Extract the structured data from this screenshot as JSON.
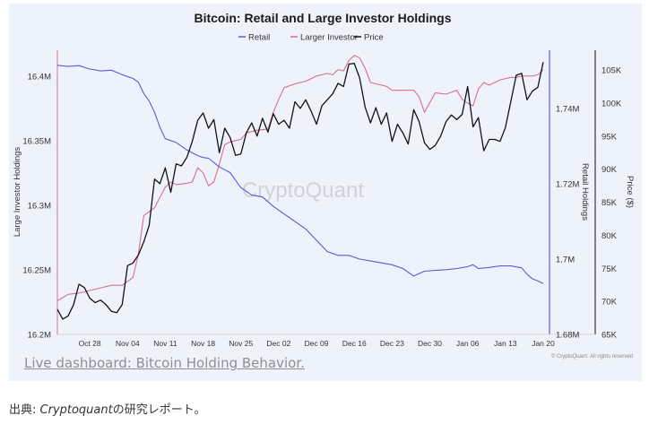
{
  "chart_data": {
    "type": "line",
    "title": "Bitcoin: Retail and Large Investor Holdings",
    "watermark": "CryptoQuant",
    "source_note": "© CryptoQuant. All rights reserved",
    "legend": {
      "placement": "top-center",
      "items": [
        {
          "name": "Retail",
          "color": "#5b5bd6"
        },
        {
          "name": "Larger Investor",
          "color": "#d9708a"
        },
        {
          "name": "Price",
          "color": "#111111"
        }
      ]
    },
    "x_ticks": [
      "Oct 28",
      "Nov 04",
      "Nov 11",
      "Nov 18",
      "Nov 25",
      "Dec 02",
      "Dec 09",
      "Dec 16",
      "Dec 23",
      "Dec 30",
      "Jan 06",
      "Jan 13",
      "Jan 20"
    ],
    "x_tick_days": [
      6,
      13,
      20,
      27,
      34,
      41,
      48,
      55,
      62,
      69,
      76,
      83,
      90
    ],
    "x_range_days": [
      0,
      91
    ],
    "axes": {
      "left": {
        "label": "Large Investor Holdings",
        "ticks": [
          "16.4M",
          "16.35M",
          "16.3M",
          "16.25M",
          "16.2M"
        ],
        "tick_values": [
          16.4,
          16.35,
          16.3,
          16.25,
          16.2
        ],
        "range": [
          16.2,
          16.42
        ]
      },
      "right1": {
        "label": "Retail Holdings",
        "ticks": [
          "1.74M",
          "1.72M",
          "1.7M",
          "1.68M"
        ],
        "tick_values": [
          1.74,
          1.72,
          1.7,
          1.68
        ],
        "range": [
          1.68,
          1.7555
        ]
      },
      "right2": {
        "label": "Price ($)",
        "ticks": [
          "105K",
          "100K",
          "95K",
          "90K",
          "85K",
          "80K",
          "75K",
          "70K",
          "65K"
        ],
        "tick_values": [
          105,
          100,
          95,
          90,
          85,
          80,
          75,
          70,
          65
        ],
        "range": [
          65,
          108
        ]
      }
    },
    "series": [
      {
        "name": "Larger Investor",
        "axis": "left",
        "color": "#d9708a",
        "points": [
          [
            0,
            16.226
          ],
          [
            2,
            16.231
          ],
          [
            4,
            16.232
          ],
          [
            6,
            16.234
          ],
          [
            8,
            16.236
          ],
          [
            10,
            16.238
          ],
          [
            12,
            16.238
          ],
          [
            14,
            16.244
          ],
          [
            15,
            16.262
          ],
          [
            16,
            16.292
          ],
          [
            18,
            16.298
          ],
          [
            20,
            16.314
          ],
          [
            21,
            16.318
          ],
          [
            22,
            16.316
          ],
          [
            24,
            16.317
          ],
          [
            25,
            16.318
          ],
          [
            26,
            16.329
          ],
          [
            27,
            16.325
          ],
          [
            28,
            16.315
          ],
          [
            29,
            16.318
          ],
          [
            30,
            16.332
          ],
          [
            31,
            16.347
          ],
          [
            32,
            16.349
          ],
          [
            34,
            16.351
          ],
          [
            35,
            16.356
          ],
          [
            37,
            16.358
          ],
          [
            39,
            16.359
          ],
          [
            40,
            16.372
          ],
          [
            41,
            16.382
          ],
          [
            42,
            16.391
          ],
          [
            44,
            16.394
          ],
          [
            46,
            16.396
          ],
          [
            48,
            16.4
          ],
          [
            50,
            16.402
          ],
          [
            51,
            16.401
          ],
          [
            52,
            16.405
          ],
          [
            53,
            16.404
          ],
          [
            54,
            16.412
          ],
          [
            55,
            16.416
          ],
          [
            56,
            16.414
          ],
          [
            57,
            16.406
          ],
          [
            58,
            16.395
          ],
          [
            59,
            16.394
          ],
          [
            60,
            16.393
          ],
          [
            61,
            16.392
          ],
          [
            62,
            16.389
          ],
          [
            64,
            16.389
          ],
          [
            66,
            16.389
          ],
          [
            67,
            16.384
          ],
          [
            68,
            16.372
          ],
          [
            70,
            16.387
          ],
          [
            72,
            16.386
          ],
          [
            74,
            16.389
          ],
          [
            75,
            16.382
          ],
          [
            76,
            16.379
          ],
          [
            77,
            16.377
          ],
          [
            78,
            16.39
          ],
          [
            79,
            16.395
          ],
          [
            80,
            16.393
          ],
          [
            81,
            16.395
          ],
          [
            82,
            16.397
          ],
          [
            84,
            16.399
          ],
          [
            85,
            16.399
          ],
          [
            86,
            16.4
          ],
          [
            88,
            16.4
          ],
          [
            89,
            16.401
          ],
          [
            90,
            16.405
          ]
        ]
      },
      {
        "name": "Retail",
        "axis": "right1",
        "color": "#5b5bd6",
        "points": [
          [
            0,
            1.7515
          ],
          [
            2,
            1.7512
          ],
          [
            4,
            1.7514
          ],
          [
            6,
            1.7505
          ],
          [
            8,
            1.75
          ],
          [
            10,
            1.7502
          ],
          [
            12,
            1.749
          ],
          [
            14,
            1.748
          ],
          [
            15,
            1.747
          ],
          [
            16,
            1.744
          ],
          [
            17,
            1.742
          ],
          [
            18,
            1.739
          ],
          [
            19,
            1.735
          ],
          [
            20,
            1.732
          ],
          [
            22,
            1.731
          ],
          [
            24,
            1.729
          ],
          [
            26,
            1.7275
          ],
          [
            27,
            1.727
          ],
          [
            28,
            1.7268
          ],
          [
            30,
            1.7245
          ],
          [
            32,
            1.723
          ],
          [
            34,
            1.719
          ],
          [
            36,
            1.717
          ],
          [
            38,
            1.7165
          ],
          [
            40,
            1.714
          ],
          [
            42,
            1.712
          ],
          [
            44,
            1.71
          ],
          [
            46,
            1.708
          ],
          [
            48,
            1.705
          ],
          [
            50,
            1.702
          ],
          [
            52,
            1.701
          ],
          [
            54,
            1.701
          ],
          [
            56,
            1.7
          ],
          [
            58,
            1.6995
          ],
          [
            60,
            1.699
          ],
          [
            62,
            1.6985
          ],
          [
            64,
            1.6975
          ],
          [
            66,
            1.6955
          ],
          [
            68,
            1.6968
          ],
          [
            70,
            1.697
          ],
          [
            72,
            1.6972
          ],
          [
            74,
            1.6975
          ],
          [
            76,
            1.698
          ],
          [
            77,
            1.6985
          ],
          [
            78,
            1.6975
          ],
          [
            80,
            1.6978
          ],
          [
            82,
            1.6982
          ],
          [
            84,
            1.6982
          ],
          [
            86,
            1.6977
          ],
          [
            87,
            1.696
          ],
          [
            88,
            1.6948
          ],
          [
            89,
            1.6942
          ],
          [
            90,
            1.6935
          ]
        ]
      },
      {
        "name": "Price",
        "axis": "right2",
        "color": "#111111",
        "points": [
          [
            0,
            68.8
          ],
          [
            1,
            67.3
          ],
          [
            2,
            67.8
          ],
          [
            3,
            69.5
          ],
          [
            4,
            72.6
          ],
          [
            5,
            72.1
          ],
          [
            6,
            70.5
          ],
          [
            7,
            69.8
          ],
          [
            8,
            70.2
          ],
          [
            9,
            69.5
          ],
          [
            10,
            68.5
          ],
          [
            11,
            68.3
          ],
          [
            12,
            69.5
          ],
          [
            13,
            75.4
          ],
          [
            14,
            75.8
          ],
          [
            15,
            77.0
          ],
          [
            16,
            79.0
          ],
          [
            17,
            81.5
          ],
          [
            18,
            88.5
          ],
          [
            19,
            87.8
          ],
          [
            20,
            90.2
          ],
          [
            21,
            86.5
          ],
          [
            22,
            90.8
          ],
          [
            23,
            90.5
          ],
          [
            24,
            91.8
          ],
          [
            25,
            94.2
          ],
          [
            26,
            97.4
          ],
          [
            27,
            98.5
          ],
          [
            28,
            96.2
          ],
          [
            29,
            97.5
          ],
          [
            30,
            92.5
          ],
          [
            31,
            96.2
          ],
          [
            32,
            94.8
          ],
          [
            33,
            92.1
          ],
          [
            34,
            92.3
          ],
          [
            35,
            95.5
          ],
          [
            36,
            97.0
          ],
          [
            37,
            95.0
          ],
          [
            38,
            97.7
          ],
          [
            39,
            95.6
          ],
          [
            40,
            98.4
          ],
          [
            41,
            96.8
          ],
          [
            42,
            97.4
          ],
          [
            43,
            96.2
          ],
          [
            44,
            100.2
          ],
          [
            45,
            99.2
          ],
          [
            46,
            100.5
          ],
          [
            47,
            98.8
          ],
          [
            48,
            96.8
          ],
          [
            49,
            99.6
          ],
          [
            50,
            100.5
          ],
          [
            51,
            101.4
          ],
          [
            52,
            103.0
          ],
          [
            53,
            102.5
          ],
          [
            54,
            105.9
          ],
          [
            55,
            106.0
          ],
          [
            56,
            103.8
          ],
          [
            57,
            99.4
          ],
          [
            58,
            97.0
          ],
          [
            59,
            99.3
          ],
          [
            60,
            96.8
          ],
          [
            61,
            98.5
          ],
          [
            62,
            94.2
          ],
          [
            63,
            96.8
          ],
          [
            64,
            95.5
          ],
          [
            65,
            93.8
          ],
          [
            66,
            99.0
          ],
          [
            67,
            97.2
          ],
          [
            68,
            94.0
          ],
          [
            69,
            93.0
          ],
          [
            70,
            93.6
          ],
          [
            71,
            95.0
          ],
          [
            72,
            97.2
          ],
          [
            73,
            98.2
          ],
          [
            74,
            97.5
          ],
          [
            75,
            98.3
          ],
          [
            76,
            102.5
          ],
          [
            77,
            96.4
          ],
          [
            78,
            97.8
          ],
          [
            79,
            92.8
          ],
          [
            80,
            94.5
          ],
          [
            81,
            94.5
          ],
          [
            82,
            94.2
          ],
          [
            83,
            96.3
          ],
          [
            84,
            100.2
          ],
          [
            85,
            104.2
          ],
          [
            86,
            104.5
          ],
          [
            87,
            100.5
          ],
          [
            88,
            101.8
          ],
          [
            89,
            102.4
          ],
          [
            90,
            106.2
          ]
        ]
      }
    ]
  },
  "link": {
    "text": "Live dashboard: Bitcoin Holding Behavior."
  },
  "caption": {
    "prefix": "出典: ",
    "source": "Cryptoquant",
    "suffix": "の研究レポート。"
  }
}
